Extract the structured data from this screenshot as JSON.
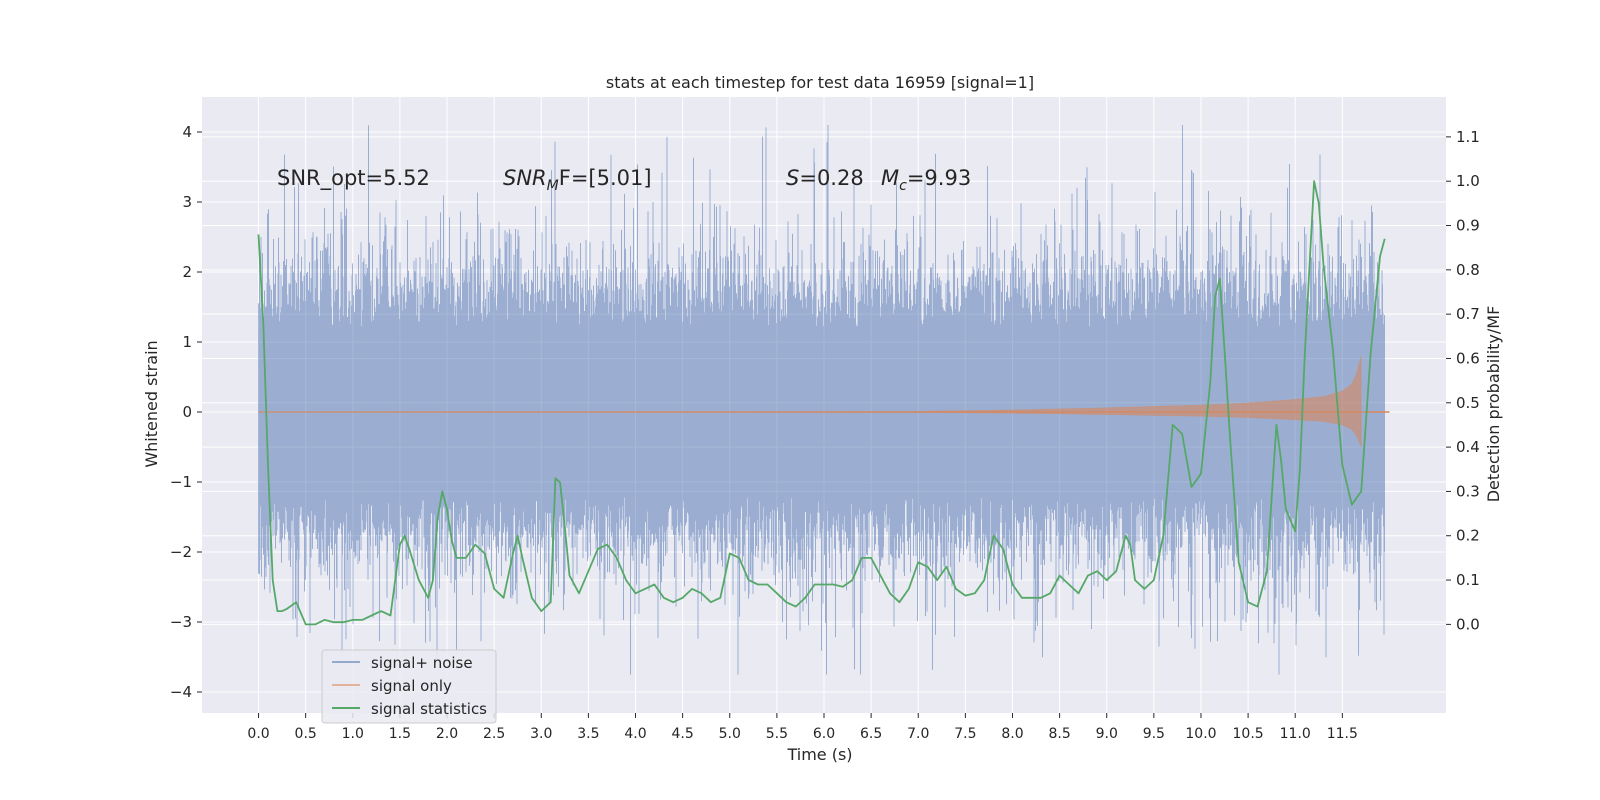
{
  "chart_data": {
    "type": "line",
    "title": "stats at each timestep for test data 16959 [signal=1]",
    "xlabel": "Time (s)",
    "ylabel_left": "Whitened strain",
    "ylabel_right": "Detection probability/MF",
    "xlim": [
      -0.6,
      12.6
    ],
    "ylim_left": [
      -4.3,
      4.5
    ],
    "ylim_right": [
      -0.2,
      1.19
    ],
    "x_ticks": [
      0.0,
      0.5,
      1.0,
      1.5,
      2.0,
      2.5,
      3.0,
      3.5,
      4.0,
      4.5,
      5.0,
      5.5,
      6.0,
      6.5,
      7.0,
      7.5,
      8.0,
      8.5,
      9.0,
      9.5,
      10.0,
      10.5,
      11.0,
      11.5
    ],
    "x_tick_labels": [
      "0.0",
      "0.5",
      "1.0",
      "1.5",
      "2.0",
      "2.5",
      "3.0",
      "3.5",
      "4.0",
      "4.5",
      "5.0",
      "5.5",
      "6.0",
      "6.5",
      "7.0",
      "7.5",
      "8.0",
      "8.5",
      "9.0",
      "9.5",
      "10.0",
      "10.5",
      "11.0",
      "11.5"
    ],
    "y_left_ticks": [
      -4,
      -3,
      -2,
      -1,
      0,
      1,
      2,
      3,
      4
    ],
    "y_left_tick_labels": [
      "−4",
      "−3",
      "−2",
      "−1",
      "0",
      "1",
      "2",
      "3",
      "4"
    ],
    "y_right_ticks": [
      0.0,
      0.1,
      0.2,
      0.3,
      0.4,
      0.5,
      0.6,
      0.7,
      0.8,
      0.9,
      1.0,
      1.1
    ],
    "y_right_tick_labels": [
      "0.0",
      "0.1",
      "0.2",
      "0.3",
      "0.4",
      "0.5",
      "0.6",
      "0.7",
      "0.8",
      "0.9",
      "1.0",
      "1.1"
    ],
    "annotations": {
      "snr_opt": "SNR_opt=5.52",
      "snr_mf_name": "SNR",
      "snr_mf_sub": "M",
      "snr_mf_rest": "F=[5.01]",
      "s_name": "S",
      "s_val": "=0.28",
      "mc_name": "M",
      "mc_sub": "c",
      "mc_val": "=9.93"
    },
    "legend": {
      "position": "lower-left",
      "entries": [
        "signal+ noise",
        "signal only",
        "signal statistics"
      ]
    },
    "series": [
      {
        "name": "signal+ noise",
        "axis": "left",
        "color": "#4c72b0",
        "alpha": 0.5,
        "t_start": 0.0,
        "t_end": 11.95,
        "noise_std": 1.0,
        "note": "whitened noise time series; individual samples are not resolvable at this scale"
      },
      {
        "name": "signal only",
        "axis": "left",
        "color": "#dd8452",
        "alpha": 0.5,
        "envelope_x": [
          0.0,
          7.0,
          8.0,
          9.0,
          9.5,
          10.0,
          10.5,
          11.0,
          11.3,
          11.5,
          11.6,
          11.65,
          11.7
        ],
        "envelope_amp": [
          0.0,
          0.01,
          0.03,
          0.06,
          0.08,
          0.1,
          0.13,
          0.18,
          0.22,
          0.3,
          0.4,
          0.55,
          0.8
        ],
        "post_merger_x": [
          11.72,
          12.0
        ],
        "post_merger_value": 0.0
      },
      {
        "name": "signal statistics",
        "axis": "right",
        "color": "#55a868",
        "x": [
          0.0,
          0.05,
          0.1,
          0.15,
          0.2,
          0.25,
          0.3,
          0.4,
          0.5,
          0.6,
          0.7,
          0.8,
          0.9,
          1.0,
          1.1,
          1.2,
          1.3,
          1.4,
          1.5,
          1.55,
          1.6,
          1.7,
          1.8,
          1.85,
          1.9,
          1.95,
          2.0,
          2.05,
          2.1,
          2.2,
          2.3,
          2.4,
          2.5,
          2.6,
          2.7,
          2.75,
          2.8,
          2.9,
          3.0,
          3.1,
          3.15,
          3.2,
          3.25,
          3.3,
          3.4,
          3.5,
          3.6,
          3.7,
          3.8,
          3.9,
          4.0,
          4.1,
          4.2,
          4.3,
          4.4,
          4.5,
          4.6,
          4.7,
          4.8,
          4.9,
          5.0,
          5.1,
          5.2,
          5.3,
          5.4,
          5.5,
          5.6,
          5.7,
          5.8,
          5.9,
          6.0,
          6.1,
          6.2,
          6.3,
          6.4,
          6.5,
          6.6,
          6.7,
          6.8,
          6.9,
          7.0,
          7.1,
          7.2,
          7.3,
          7.4,
          7.5,
          7.6,
          7.7,
          7.8,
          7.9,
          8.0,
          8.1,
          8.2,
          8.3,
          8.4,
          8.5,
          8.6,
          8.7,
          8.8,
          8.9,
          9.0,
          9.1,
          9.2,
          9.25,
          9.3,
          9.4,
          9.5,
          9.6,
          9.7,
          9.8,
          9.9,
          10.0,
          10.1,
          10.15,
          10.2,
          10.25,
          10.3,
          10.4,
          10.5,
          10.6,
          10.7,
          10.8,
          10.85,
          10.9,
          11.0,
          11.05,
          11.1,
          11.15,
          11.2,
          11.25,
          11.3,
          11.4,
          11.5,
          11.6,
          11.7,
          11.8,
          11.9,
          11.95
        ],
        "values": [
          0.88,
          0.68,
          0.36,
          0.1,
          0.03,
          0.03,
          0.035,
          0.05,
          0.0,
          0.0,
          0.01,
          0.005,
          0.005,
          0.01,
          0.01,
          0.02,
          0.03,
          0.02,
          0.18,
          0.2,
          0.17,
          0.1,
          0.06,
          0.1,
          0.24,
          0.3,
          0.26,
          0.19,
          0.15,
          0.15,
          0.18,
          0.16,
          0.08,
          0.06,
          0.16,
          0.2,
          0.15,
          0.06,
          0.03,
          0.05,
          0.33,
          0.32,
          0.22,
          0.11,
          0.07,
          0.12,
          0.17,
          0.18,
          0.15,
          0.1,
          0.07,
          0.08,
          0.09,
          0.06,
          0.05,
          0.06,
          0.08,
          0.07,
          0.05,
          0.06,
          0.16,
          0.15,
          0.1,
          0.09,
          0.09,
          0.07,
          0.05,
          0.04,
          0.06,
          0.09,
          0.09,
          0.09,
          0.085,
          0.1,
          0.15,
          0.15,
          0.11,
          0.07,
          0.05,
          0.08,
          0.14,
          0.13,
          0.1,
          0.13,
          0.08,
          0.065,
          0.07,
          0.1,
          0.2,
          0.17,
          0.09,
          0.06,
          0.06,
          0.06,
          0.07,
          0.11,
          0.09,
          0.07,
          0.11,
          0.12,
          0.1,
          0.12,
          0.2,
          0.18,
          0.1,
          0.08,
          0.1,
          0.2,
          0.45,
          0.43,
          0.31,
          0.34,
          0.55,
          0.74,
          0.78,
          0.62,
          0.45,
          0.14,
          0.05,
          0.04,
          0.12,
          0.45,
          0.37,
          0.26,
          0.21,
          0.35,
          0.6,
          0.8,
          1.0,
          0.95,
          0.81,
          0.62,
          0.36,
          0.27,
          0.3,
          0.61,
          0.83,
          0.87
        ]
      }
    ]
  }
}
